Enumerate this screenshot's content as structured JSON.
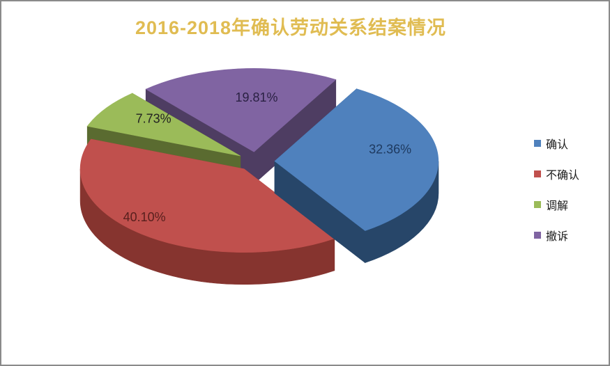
{
  "window": {
    "background": "#ffffff",
    "border_color": "#8a8a8a"
  },
  "chart_data": {
    "type": "pie",
    "projection": "3d-exploded",
    "title": "2016-2018年确认劳动关系结案情况",
    "title_color": "#e0bc52",
    "legend_position": "right",
    "rotation_deg": 30,
    "slices": [
      {
        "name": "确认",
        "value": 32.36,
        "label": "32.36%",
        "color": "#4f81bd",
        "side_color": "#274669",
        "label_color": "#1e3a60"
      },
      {
        "name": "不确认",
        "value": 40.1,
        "label": "40.10%",
        "color": "#c0504d",
        "side_color": "#86342f",
        "label_color": "#571f1d"
      },
      {
        "name": "调解",
        "value": 7.73,
        "label": "7.73%",
        "color": "#9bbb59",
        "side_color": "#5a6b30",
        "label_color": "#222222"
      },
      {
        "name": "撤诉",
        "value": 19.81,
        "label": "19.81%",
        "color": "#8064a2",
        "side_color": "#4e3d62",
        "label_color": "#2a2143"
      }
    ]
  }
}
